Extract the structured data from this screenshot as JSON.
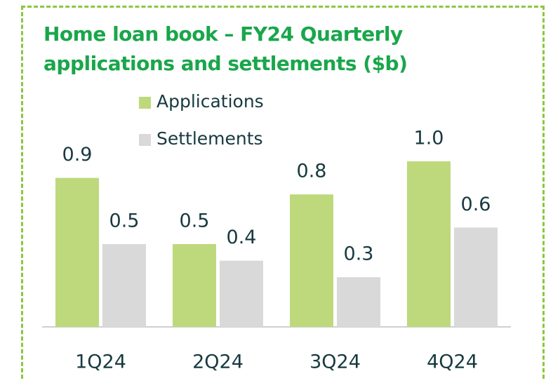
{
  "chart_data": {
    "type": "bar",
    "title": "Home loan book – FY24 Quarterly applications and settlements ($b)",
    "categories": [
      "1Q24",
      "2Q24",
      "3Q24",
      "4Q24"
    ],
    "series": [
      {
        "name": "Applications",
        "color": "#bdd97c",
        "values": [
          0.9,
          0.5,
          0.8,
          1.0
        ],
        "value_labels": [
          "0.9",
          "0.5",
          "0.8",
          "1.0"
        ]
      },
      {
        "name": "Settlements",
        "color": "#d9d9d9",
        "values": [
          0.5,
          0.4,
          0.3,
          0.6
        ]
      }
    ],
    "legend": "top"
  }
}
